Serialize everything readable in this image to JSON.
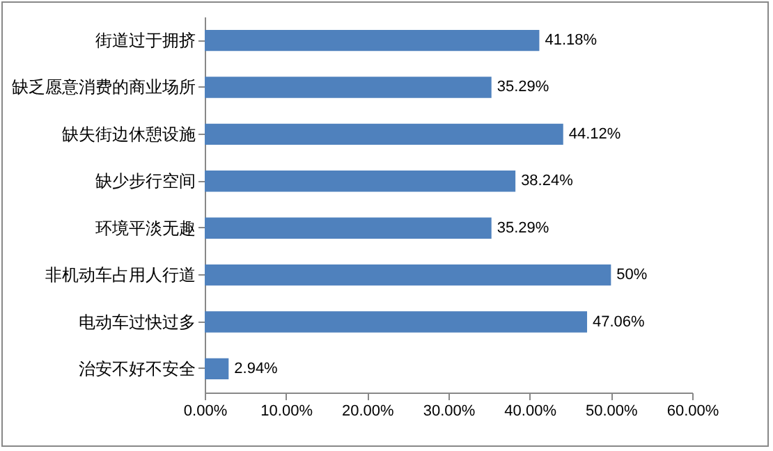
{
  "chart_data": {
    "type": "bar",
    "orientation": "horizontal",
    "categories": [
      "街道过于拥挤",
      "缺乏愿意消费的商业场所",
      "缺失街边休憩设施",
      "缺少步行空间",
      "环境平淡无趣",
      "非机动车占用人行道",
      "电动车过快过多",
      "治安不好不安全"
    ],
    "values": [
      41.18,
      35.29,
      44.12,
      38.24,
      35.29,
      50,
      47.06,
      2.94
    ],
    "value_labels": [
      "41.18%",
      "35.29%",
      "44.12%",
      "38.24%",
      "35.29%",
      "50%",
      "47.06%",
      "2.94%"
    ],
    "color": "#4f81bd",
    "xlim": [
      0,
      60
    ],
    "xticks": [
      {
        "value": 0,
        "label": "0.00%"
      },
      {
        "value": 10,
        "label": "10.00%"
      },
      {
        "value": 20,
        "label": "20.00%"
      },
      {
        "value": 30,
        "label": "30.00%"
      },
      {
        "value": 40,
        "label": "40.00%"
      },
      {
        "value": 50,
        "label": "50.00%"
      },
      {
        "value": 60,
        "label": "60.00%"
      }
    ],
    "grid": false
  }
}
